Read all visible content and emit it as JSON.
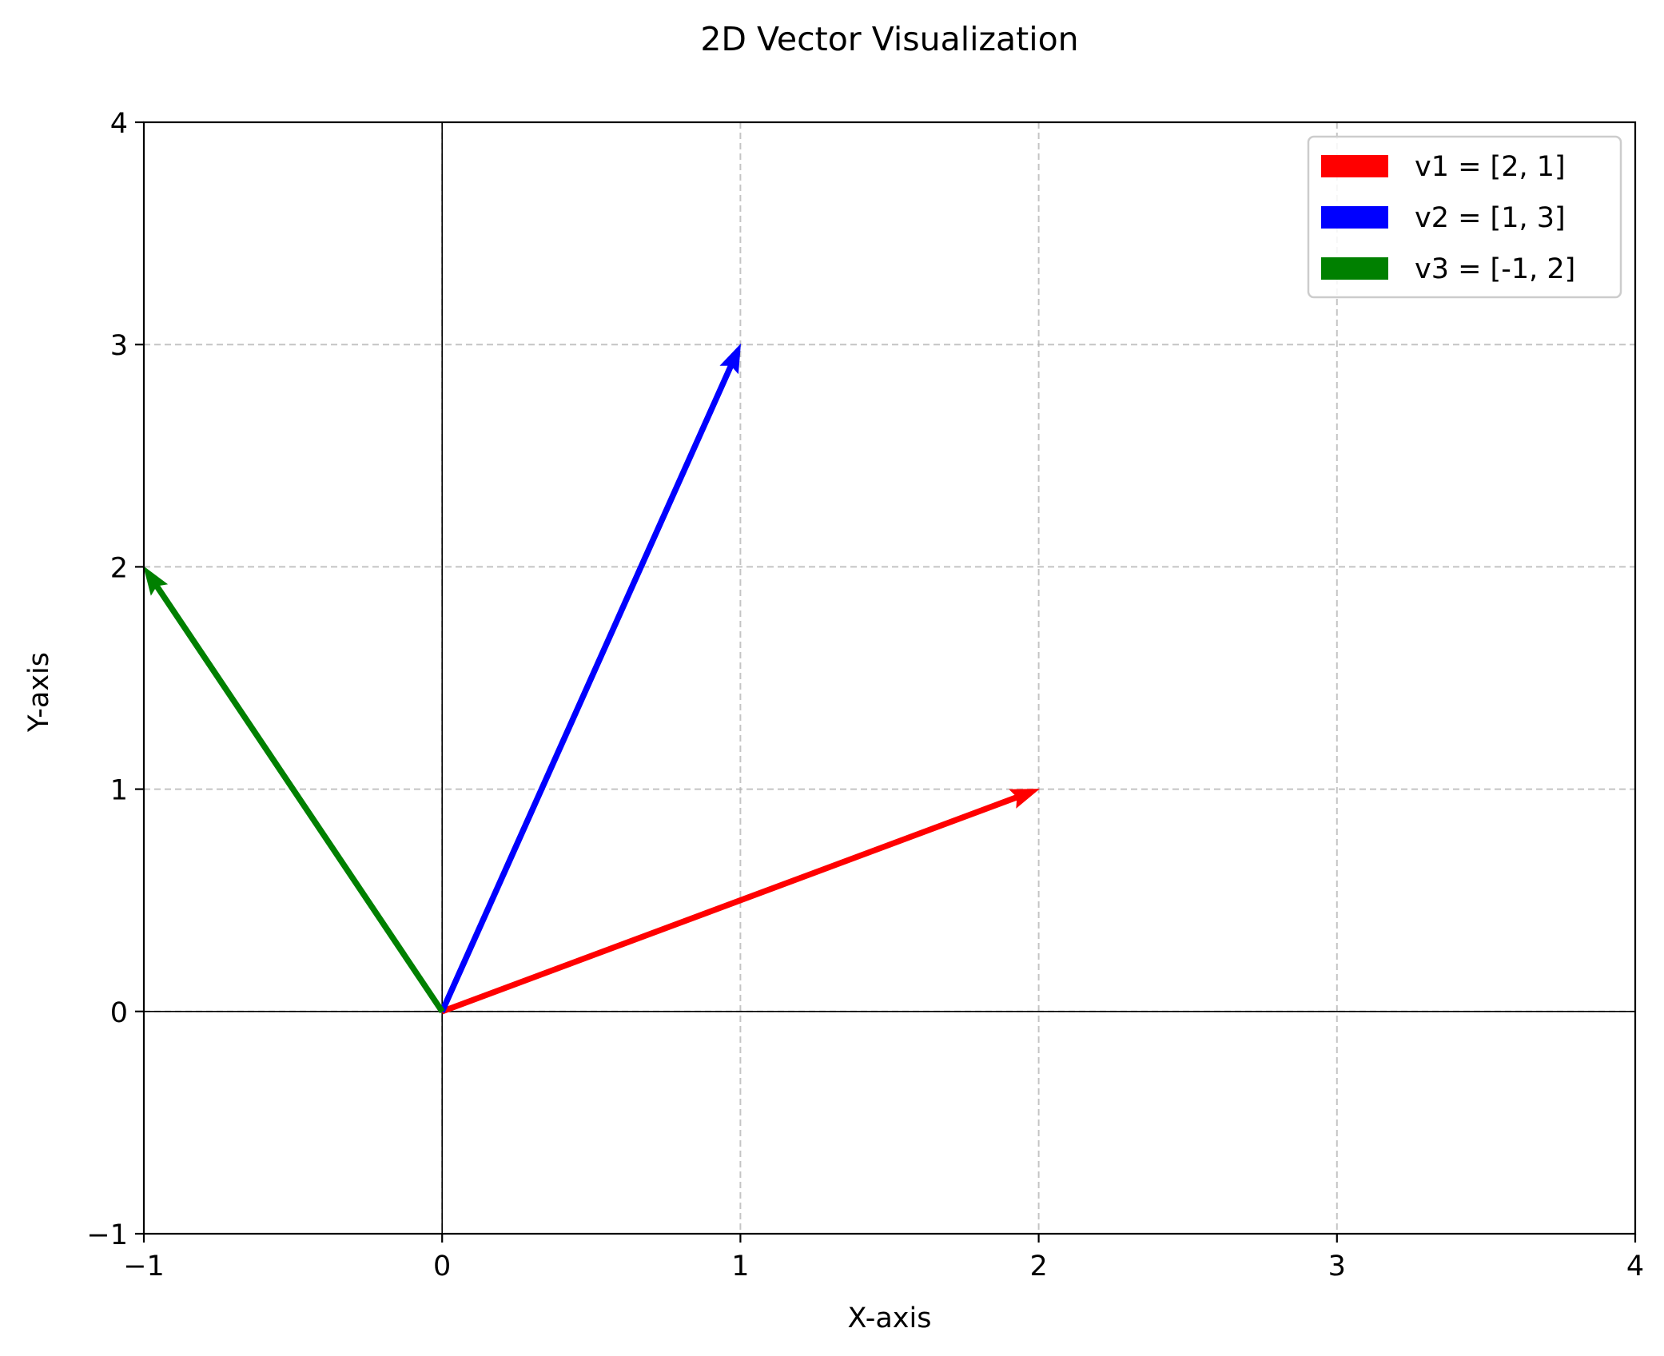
{
  "chart_data": {
    "type": "vector",
    "title": "2D Vector Visualization",
    "xlabel": "X-axis",
    "ylabel": "Y-axis",
    "xlim": [
      -1,
      4
    ],
    "ylim": [
      -1,
      4
    ],
    "xticks": [
      -1,
      0,
      1,
      2,
      3,
      4
    ],
    "yticks": [
      -1,
      0,
      1,
      2,
      3,
      4
    ],
    "xtick_labels": [
      "−1",
      "0",
      "1",
      "2",
      "3",
      "4"
    ],
    "ytick_labels": [
      "−1",
      "0",
      "1",
      "2",
      "3",
      "4"
    ],
    "grid": true,
    "grid_style": "dashed",
    "origin_axes": true,
    "legend_position": "top-right",
    "series": [
      {
        "name": "v1 = [2, 1]",
        "origin": [
          0,
          0
        ],
        "vector": [
          2,
          1
        ],
        "color": "#ff0000"
      },
      {
        "name": "v2 = [1, 3]",
        "origin": [
          0,
          0
        ],
        "vector": [
          1,
          3
        ],
        "color": "#0000ff"
      },
      {
        "name": "v3 = [-1, 2]",
        "origin": [
          0,
          0
        ],
        "vector": [
          -1,
          2
        ],
        "color": "#008000"
      }
    ]
  }
}
